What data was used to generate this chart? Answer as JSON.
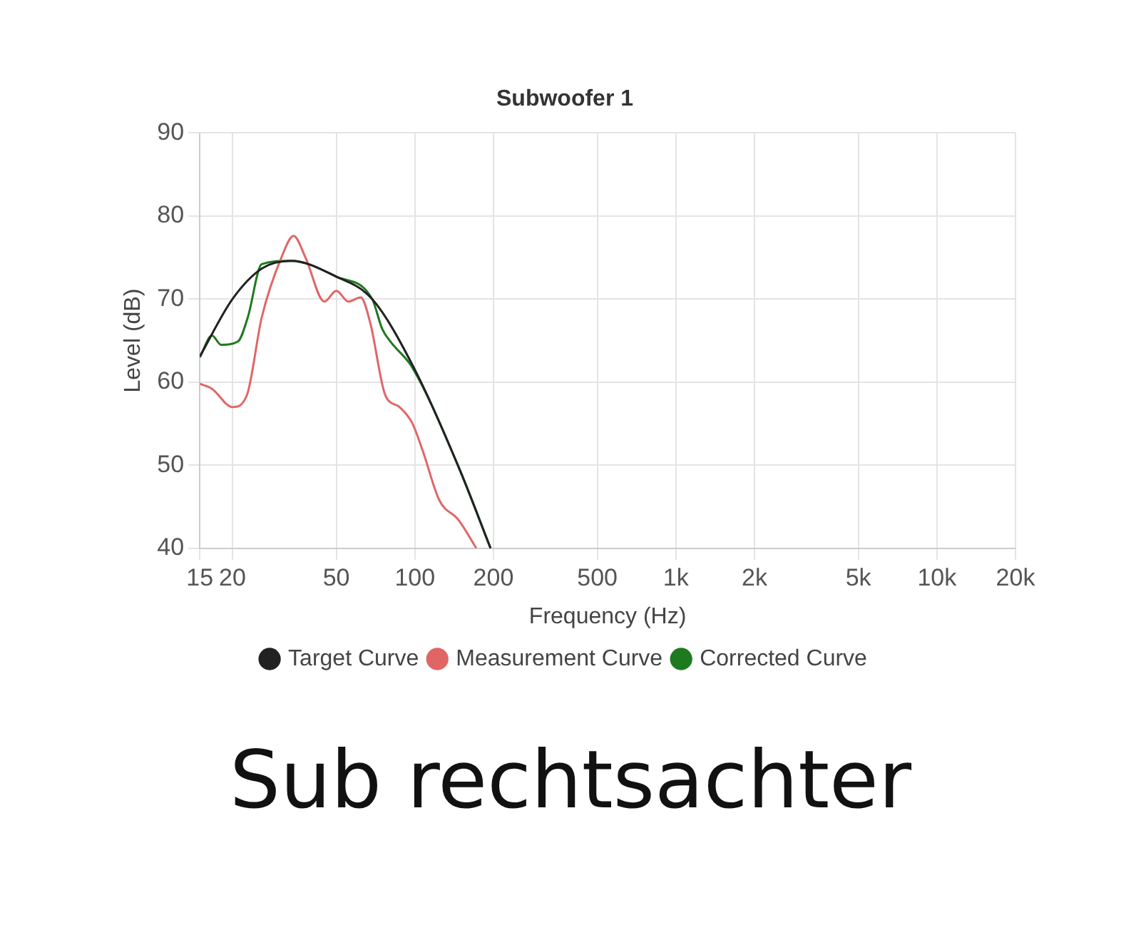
{
  "chart_data": {
    "type": "line",
    "title": "Subwoofer 1",
    "xlabel": "Frequency (Hz)",
    "ylabel": "Level (dB)",
    "log": "x",
    "xlim": [
      15,
      20000
    ],
    "xticks": [
      15,
      20,
      50,
      100,
      200,
      500,
      {
        "value": 1000,
        "label": "1k"
      },
      {
        "value": 2000,
        "label": "2k"
      },
      {
        "value": 5000,
        "label": "5k"
      },
      {
        "value": 10000,
        "label": "10k"
      },
      {
        "value": 20000,
        "label": "20k"
      }
    ],
    "ylim": [
      40,
      90
    ],
    "yticks": [
      40,
      50,
      60,
      70,
      80,
      90
    ],
    "grid": true,
    "legend": "bottom",
    "marker": "none",
    "line_style": "solid",
    "annotations": [
      "Sub rechtsachter"
    ],
    "series": [
      {
        "name": "Target Curve",
        "color": "#222222",
        "x": [
          15,
          20,
          26,
          33.5,
          50,
          68.6,
          100,
          147,
          195
        ],
        "values": [
          63.1,
          70,
          73.7,
          74.6,
          72.7,
          70,
          61.5,
          49.8,
          40
        ]
      },
      {
        "name": "Measurement Curve",
        "color": "#e06666",
        "x": [
          15,
          16.7,
          20,
          22.7,
          25.9,
          30.8,
          34.3,
          38.1,
          45,
          50,
          55.7,
          62,
          67.5,
          76.9,
          87.4,
          97.6,
          107,
          124,
          147,
          172
        ],
        "values": [
          59.8,
          59.2,
          57,
          58.4,
          67.8,
          75,
          77.6,
          75,
          69.7,
          71,
          69.7,
          70.2,
          67.1,
          58.5,
          57,
          55.1,
          51.8,
          45.8,
          43.4,
          40
        ]
      },
      {
        "name": "Corrected Curve",
        "color": "#1e7a1e",
        "x": [
          15,
          16.7,
          18.1,
          21,
          22.9,
          25.9,
          33.5,
          50,
          68.6,
          75,
          81,
          97.6,
          147,
          195
        ],
        "values": [
          63,
          65.6,
          64.5,
          64.9,
          67.8,
          74.2,
          74.6,
          72.7,
          70,
          66.4,
          64.8,
          61.8,
          49.8,
          40
        ]
      }
    ]
  }
}
